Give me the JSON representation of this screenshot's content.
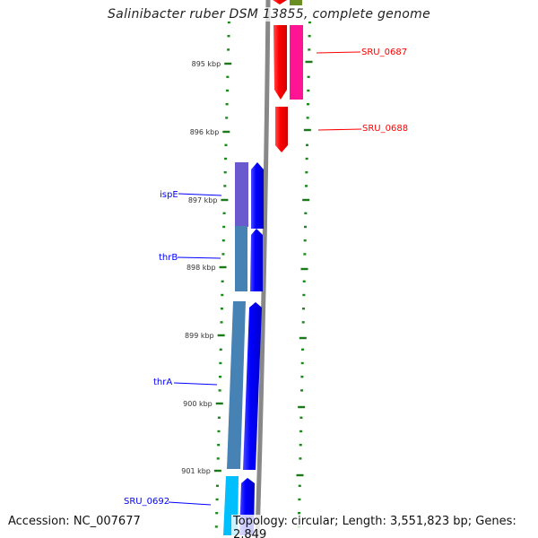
{
  "title": "Salinibacter ruber DSM 13855, complete genome",
  "accession": "Accession: NC_007677",
  "topology": "Topology: circular; Length: 3,551,823 bp; Genes: 2,849",
  "ticks": [
    "895 kbp",
    "896 kbp",
    "897 kbp",
    "898 kbp",
    "899 kbp",
    "900 kbp",
    "901 kbp"
  ],
  "genes": {
    "sru0687": {
      "label": "SRU_0687",
      "color": "#ff0000"
    },
    "sru0688": {
      "label": "SRU_0688",
      "color": "#ff0000"
    },
    "ispE": {
      "label": "ispE",
      "color": "#0000ff"
    },
    "thrB": {
      "label": "thrB",
      "color": "#0000ff"
    },
    "thrA": {
      "label": "thrA",
      "color": "#0000ff"
    },
    "sru0692": {
      "label": "SRU_0692",
      "color": "#0000ff"
    }
  }
}
